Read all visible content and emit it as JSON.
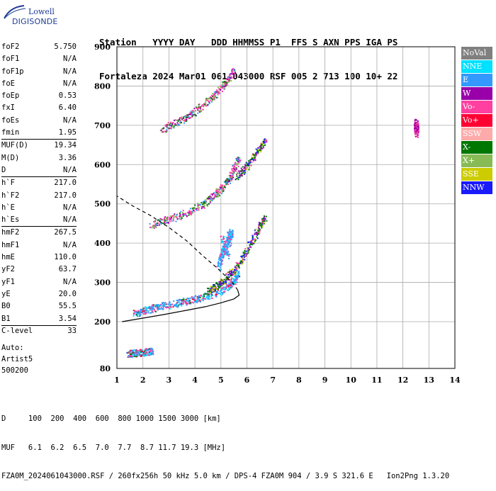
{
  "logo": {
    "line1": "Lowell",
    "line2": "DIGISONDE"
  },
  "header": {
    "line1": "Station   YYYY DAY   DDD HHMMSS P1  FFS S AXN PPS IGA PS",
    "line2": "Fortaleza 2024 Mar01 061 043000 RSF 005 2 713 100 10+ 22"
  },
  "params": {
    "group1": [
      {
        "label": "foF2",
        "value": "5.750"
      },
      {
        "label": "foF1",
        "value": "N/A"
      },
      {
        "label": "foF1p",
        "value": "N/A"
      },
      {
        "label": "foE",
        "value": "N/A"
      },
      {
        "label": "foEp",
        "value": "0.53"
      },
      {
        "label": "fxI",
        "value": "6.40"
      },
      {
        "label": "foEs",
        "value": "N/A"
      },
      {
        "label": "fmin",
        "value": "1.95"
      }
    ],
    "group2": [
      {
        "label": "MUF(D)",
        "value": "19.34"
      },
      {
        "label": "M(D)",
        "value": "3.36"
      },
      {
        "label": "D",
        "value": "N/A"
      }
    ],
    "group3": [
      {
        "label": "h`F",
        "value": "217.0"
      },
      {
        "label": "h`F2",
        "value": "217.0"
      },
      {
        "label": "h`E",
        "value": "N/A"
      },
      {
        "label": "h`Es",
        "value": "N/A"
      }
    ],
    "group4": [
      {
        "label": "hmF2",
        "value": "267.5"
      },
      {
        "label": "hmF1",
        "value": "N/A"
      },
      {
        "label": "hmE",
        "value": "110.0"
      },
      {
        "label": "yF2",
        "value": "63.7"
      },
      {
        "label": "yF1",
        "value": "N/A"
      },
      {
        "label": "yE",
        "value": "20.0"
      },
      {
        "label": "B0",
        "value": "55.5"
      },
      {
        "label": "B1",
        "value": "3.54"
      }
    ],
    "clevel": {
      "label": "C-level",
      "value": "33"
    },
    "auto": [
      "Auto:",
      "Artist5",
      "500200"
    ]
  },
  "legend": [
    {
      "label": "NoVal",
      "color": "#808080"
    },
    {
      "label": "NNE",
      "color": "#00e0ff"
    },
    {
      "label": "E",
      "color": "#3399ff"
    },
    {
      "label": "W",
      "color": "#9900aa"
    },
    {
      "label": "Vo-",
      "color": "#ff40a0"
    },
    {
      "label": "Vo+",
      "color": "#ff0033"
    },
    {
      "label": "SSW",
      "color": "#ffaaaa"
    },
    {
      "label": "X-",
      "color": "#007700"
    },
    {
      "label": "X+",
      "color": "#88bb55"
    },
    {
      "label": "SSE",
      "color": "#cccc00"
    },
    {
      "label": "NNW",
      "color": "#1a1aff"
    }
  ],
  "chart_data": {
    "type": "scatter",
    "xlim": [
      1,
      14
    ],
    "ylim": [
      80,
      900
    ],
    "x_ticks": [
      1,
      2,
      3,
      4,
      5,
      6,
      7,
      8,
      9,
      10,
      11,
      12,
      13,
      14
    ],
    "y_ticks": [
      80,
      200,
      300,
      400,
      500,
      600,
      700,
      800,
      900
    ],
    "grid": true,
    "traces": [
      {
        "name": "F2 o-trace",
        "points": [
          [
            1.65,
            222
          ],
          [
            1.9,
            226
          ],
          [
            2.2,
            232
          ],
          [
            2.6,
            238
          ],
          [
            3.0,
            244
          ],
          [
            3.4,
            250
          ],
          [
            3.8,
            256
          ],
          [
            4.2,
            262
          ],
          [
            4.6,
            270
          ],
          [
            5.0,
            280
          ],
          [
            5.3,
            292
          ],
          [
            5.5,
            305
          ],
          [
            5.65,
            330
          ]
        ]
      },
      {
        "name": "F2 x-trace",
        "points": [
          [
            4.5,
            276
          ],
          [
            4.8,
            290
          ],
          [
            5.1,
            305
          ],
          [
            5.4,
            325
          ],
          [
            5.7,
            350
          ],
          [
            6.0,
            385
          ],
          [
            6.3,
            420
          ],
          [
            6.5,
            445
          ],
          [
            6.7,
            470
          ]
        ]
      },
      {
        "name": "2F multiple",
        "points": [
          [
            2.3,
            448
          ],
          [
            2.8,
            458
          ],
          [
            3.3,
            468
          ],
          [
            3.8,
            482
          ],
          [
            4.3,
            500
          ],
          [
            4.7,
            520
          ],
          [
            5.0,
            540
          ],
          [
            5.3,
            565
          ],
          [
            5.5,
            590
          ],
          [
            5.7,
            620
          ]
        ]
      },
      {
        "name": "2F multiple x",
        "points": [
          [
            5.6,
            570
          ],
          [
            5.9,
            590
          ],
          [
            6.2,
            615
          ],
          [
            6.5,
            645
          ],
          [
            6.7,
            665
          ]
        ]
      },
      {
        "name": "3F multiple",
        "points": [
          [
            2.7,
            690
          ],
          [
            3.1,
            702
          ],
          [
            3.5,
            715
          ],
          [
            3.9,
            732
          ],
          [
            4.3,
            752
          ],
          [
            4.7,
            775
          ],
          [
            5.0,
            795
          ],
          [
            5.3,
            820
          ],
          [
            5.5,
            840
          ]
        ]
      },
      {
        "name": "low echoes",
        "points": [
          [
            1.4,
            118
          ],
          [
            1.6,
            120
          ],
          [
            1.8,
            121
          ],
          [
            2.0,
            122
          ],
          [
            2.2,
            124
          ],
          [
            2.35,
            125
          ]
        ]
      },
      {
        "name": "spread E",
        "points": [
          [
            4.9,
            340
          ],
          [
            5.0,
            365
          ],
          [
            5.1,
            385
          ],
          [
            5.2,
            400
          ],
          [
            5.3,
            420
          ],
          [
            5.4,
            430
          ],
          [
            5.2,
            370
          ],
          [
            5.0,
            420
          ]
        ]
      },
      {
        "name": "high freq spot",
        "points": [
          [
            12.5,
            678
          ],
          [
            12.5,
            690
          ],
          [
            12.5,
            702
          ],
          [
            12.5,
            712
          ]
        ]
      }
    ],
    "profile": [
      [
        1.2,
        200
      ],
      [
        2.0,
        209
      ],
      [
        2.8,
        218
      ],
      [
        3.6,
        228
      ],
      [
        4.4,
        238
      ],
      [
        5.0,
        248
      ],
      [
        5.5,
        258
      ],
      [
        5.7,
        267.5
      ],
      [
        5.65,
        280
      ],
      [
        5.5,
        295
      ],
      [
        5.2,
        315
      ],
      [
        4.8,
        340
      ],
      [
        4.3,
        368
      ],
      [
        3.7,
        405
      ],
      [
        3.0,
        440
      ],
      [
        2.3,
        470
      ],
      [
        1.6,
        495
      ],
      [
        1.0,
        520
      ]
    ]
  },
  "footer": {
    "line1": "D     100  200  400  600  800 1000 1500 3000 [km]",
    "line2": "MUF   6.1  6.2  6.5  7.0  7.7  8.7 11.7 19.3 [MHz]",
    "line3": "FZA0M_2024061043000.RSF / 260fx256h 50 kHz 5.0 km / DPS-4 FZA0M 904 / 3.9 S 321.6 E   Ion2Png 1.3.20"
  }
}
